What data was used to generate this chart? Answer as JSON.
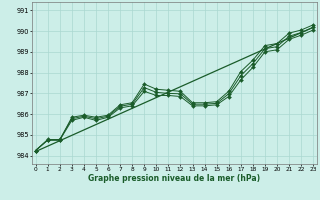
{
  "xlabel": "Graphe pression niveau de la mer (hPa)",
  "bg_color": "#cceee8",
  "grid_color": "#aad8d0",
  "line_color": "#1a5c2a",
  "x_ticks": [
    0,
    1,
    2,
    3,
    4,
    5,
    6,
    7,
    8,
    9,
    10,
    11,
    12,
    13,
    14,
    15,
    16,
    17,
    18,
    19,
    20,
    21,
    22,
    23
  ],
  "y_ticks": [
    984,
    985,
    986,
    987,
    988,
    989,
    990,
    991
  ],
  "ylim": [
    983.6,
    991.4
  ],
  "xlim": [
    -0.3,
    23.3
  ],
  "trend": [
    984.2,
    984.46,
    984.72,
    984.98,
    985.24,
    985.5,
    985.76,
    986.02,
    986.28,
    986.54,
    986.8,
    987.06,
    987.32,
    987.58,
    987.84,
    988.1,
    988.36,
    988.62,
    988.88,
    989.14,
    989.4,
    989.66,
    989.92,
    990.18
  ],
  "line1": [
    984.25,
    984.75,
    984.75,
    985.85,
    985.95,
    985.85,
    985.95,
    986.45,
    986.55,
    987.45,
    987.2,
    987.15,
    987.1,
    986.55,
    986.55,
    986.6,
    987.1,
    988.05,
    988.6,
    989.3,
    989.4,
    989.9,
    990.05,
    990.3
  ],
  "line2": [
    984.25,
    984.75,
    984.75,
    985.7,
    985.85,
    985.7,
    985.85,
    986.3,
    986.4,
    987.1,
    986.9,
    986.9,
    986.85,
    986.4,
    986.4,
    986.45,
    986.85,
    987.65,
    988.25,
    989.0,
    989.1,
    989.6,
    989.8,
    990.05
  ],
  "line3": [
    984.25,
    984.78,
    984.78,
    985.78,
    985.9,
    985.78,
    985.9,
    986.38,
    986.48,
    987.28,
    987.05,
    987.0,
    986.98,
    986.48,
    986.48,
    986.52,
    986.98,
    987.85,
    988.43,
    989.15,
    989.25,
    989.75,
    989.93,
    990.18
  ]
}
